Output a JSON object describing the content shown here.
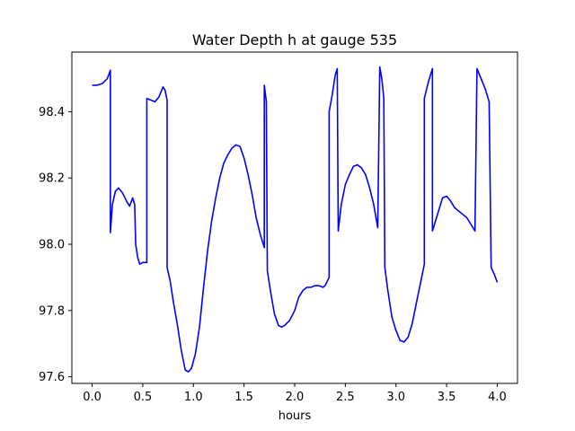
{
  "chart_data": {
    "type": "line",
    "title": "Water Depth h at gauge 535",
    "xlabel": "hours",
    "ylabel": "",
    "xlim": [
      -0.2,
      4.2
    ],
    "ylim": [
      97.58,
      98.58
    ],
    "xticks": [
      0.0,
      0.5,
      1.0,
      1.5,
      2.0,
      2.5,
      3.0,
      3.5,
      4.0
    ],
    "xtick_labels": [
      "0.0",
      "0.5",
      "1.0",
      "1.5",
      "2.0",
      "2.5",
      "3.0",
      "3.5",
      "4.0"
    ],
    "yticks": [
      97.6,
      97.8,
      98.0,
      98.2,
      98.4
    ],
    "ytick_labels": [
      "97.6",
      "97.8",
      "98.0",
      "98.2",
      "98.4"
    ],
    "grid": false,
    "legend": "none",
    "colors": {
      "line": "#0000ff",
      "axes": "#000000",
      "background": "#ffffff"
    },
    "series": [
      {
        "color": "#0000ff",
        "points": [
          [
            0.0,
            98.48
          ],
          [
            0.05,
            98.48
          ],
          [
            0.1,
            98.485
          ],
          [
            0.15,
            98.5
          ],
          [
            0.18,
            98.525
          ],
          [
            0.18,
            98.035
          ],
          [
            0.2,
            98.12
          ],
          [
            0.23,
            98.16
          ],
          [
            0.26,
            98.17
          ],
          [
            0.3,
            98.155
          ],
          [
            0.34,
            98.13
          ],
          [
            0.37,
            98.115
          ],
          [
            0.4,
            98.14
          ],
          [
            0.42,
            98.12
          ],
          [
            0.43,
            98.0
          ],
          [
            0.45,
            97.96
          ],
          [
            0.47,
            97.94
          ],
          [
            0.5,
            97.945
          ],
          [
            0.54,
            97.945
          ],
          [
            0.54,
            98.44
          ],
          [
            0.58,
            98.435
          ],
          [
            0.62,
            98.43
          ],
          [
            0.66,
            98.445
          ],
          [
            0.7,
            98.475
          ],
          [
            0.72,
            98.465
          ],
          [
            0.74,
            98.435
          ],
          [
            0.74,
            97.93
          ],
          [
            0.77,
            97.89
          ],
          [
            0.8,
            97.83
          ],
          [
            0.84,
            97.76
          ],
          [
            0.88,
            97.68
          ],
          [
            0.92,
            97.62
          ],
          [
            0.95,
            97.615
          ],
          [
            0.98,
            97.625
          ],
          [
            1.02,
            97.67
          ],
          [
            1.06,
            97.75
          ],
          [
            1.1,
            97.87
          ],
          [
            1.14,
            97.98
          ],
          [
            1.18,
            98.07
          ],
          [
            1.22,
            98.14
          ],
          [
            1.26,
            98.2
          ],
          [
            1.3,
            98.245
          ],
          [
            1.34,
            98.27
          ],
          [
            1.38,
            98.29
          ],
          [
            1.42,
            98.3
          ],
          [
            1.46,
            98.295
          ],
          [
            1.5,
            98.26
          ],
          [
            1.54,
            98.21
          ],
          [
            1.58,
            98.15
          ],
          [
            1.62,
            98.08
          ],
          [
            1.66,
            98.03
          ],
          [
            1.7,
            97.99
          ],
          [
            1.7,
            98.48
          ],
          [
            1.72,
            98.43
          ],
          [
            1.73,
            97.92
          ],
          [
            1.76,
            97.86
          ],
          [
            1.8,
            97.79
          ],
          [
            1.84,
            97.755
          ],
          [
            1.87,
            97.75
          ],
          [
            1.9,
            97.755
          ],
          [
            1.95,
            97.77
          ],
          [
            2.0,
            97.8
          ],
          [
            2.04,
            97.84
          ],
          [
            2.08,
            97.86
          ],
          [
            2.12,
            97.87
          ],
          [
            2.16,
            97.87
          ],
          [
            2.2,
            97.875
          ],
          [
            2.24,
            97.875
          ],
          [
            2.28,
            97.87
          ],
          [
            2.3,
            97.875
          ],
          [
            2.34,
            97.9
          ],
          [
            2.34,
            98.4
          ],
          [
            2.37,
            98.45
          ],
          [
            2.4,
            98.51
          ],
          [
            2.42,
            98.53
          ],
          [
            2.43,
            98.04
          ],
          [
            2.46,
            98.12
          ],
          [
            2.5,
            98.18
          ],
          [
            2.54,
            98.21
          ],
          [
            2.58,
            98.235
          ],
          [
            2.62,
            98.24
          ],
          [
            2.66,
            98.23
          ],
          [
            2.7,
            98.21
          ],
          [
            2.74,
            98.17
          ],
          [
            2.78,
            98.12
          ],
          [
            2.82,
            98.05
          ],
          [
            2.84,
            98.535
          ],
          [
            2.86,
            98.5
          ],
          [
            2.88,
            98.44
          ],
          [
            2.89,
            97.93
          ],
          [
            2.92,
            97.86
          ],
          [
            2.96,
            97.78
          ],
          [
            3.0,
            97.74
          ],
          [
            3.04,
            97.71
          ],
          [
            3.08,
            97.705
          ],
          [
            3.12,
            97.72
          ],
          [
            3.16,
            97.76
          ],
          [
            3.2,
            97.82
          ],
          [
            3.24,
            97.88
          ],
          [
            3.28,
            97.94
          ],
          [
            3.28,
            98.44
          ],
          [
            3.32,
            98.49
          ],
          [
            3.36,
            98.53
          ],
          [
            3.36,
            98.04
          ],
          [
            3.4,
            98.08
          ],
          [
            3.42,
            98.1
          ],
          [
            3.46,
            98.14
          ],
          [
            3.5,
            98.145
          ],
          [
            3.54,
            98.13
          ],
          [
            3.58,
            98.11
          ],
          [
            3.62,
            98.1
          ],
          [
            3.66,
            98.09
          ],
          [
            3.7,
            98.08
          ],
          [
            3.74,
            98.06
          ],
          [
            3.78,
            98.04
          ],
          [
            3.8,
            98.53
          ],
          [
            3.84,
            98.5
          ],
          [
            3.88,
            98.47
          ],
          [
            3.92,
            98.43
          ],
          [
            3.94,
            97.93
          ],
          [
            3.97,
            97.91
          ],
          [
            4.0,
            97.885
          ]
        ]
      }
    ]
  }
}
